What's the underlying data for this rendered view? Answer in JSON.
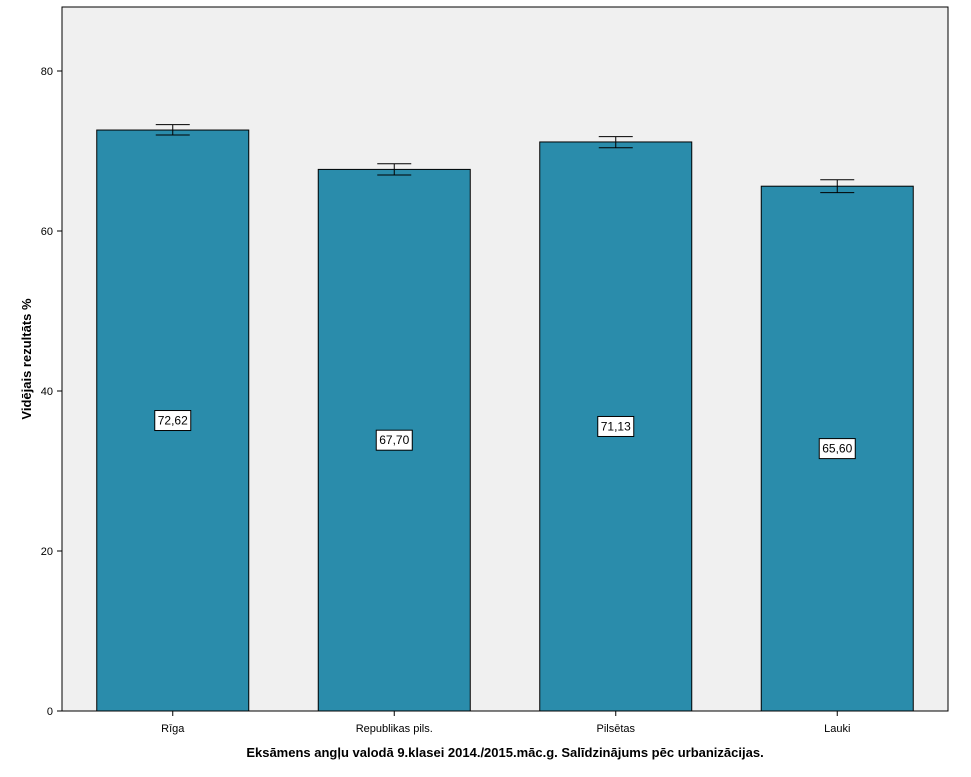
{
  "chart_data": {
    "type": "bar",
    "categories": [
      "Rīga",
      "Republikas pils.",
      "Pilsētas",
      "Lauki"
    ],
    "values": [
      72.62,
      67.7,
      71.13,
      65.6
    ],
    "value_labels": [
      "72,62",
      "67,70",
      "71,13",
      "65,60"
    ],
    "error_bars": [
      {
        "low": 72.0,
        "high": 73.3
      },
      {
        "low": 67.0,
        "high": 68.4
      },
      {
        "low": 70.4,
        "high": 71.8
      },
      {
        "low": 64.8,
        "high": 66.4
      }
    ],
    "xlabel": "Eksāmens angļu valodā 9.klasei 2014./2015.māc.g. Salīdzinājums pēc urbanizācijas.",
    "ylabel": "Vidējais rezultāts %",
    "ylim": [
      0,
      88
    ],
    "yticks": [
      0,
      20,
      40,
      60,
      80
    ],
    "grid": false,
    "legend": "none",
    "colors": {
      "bar": "#2a8cab",
      "plot_background": "#f0f0f0",
      "axis": "#000000",
      "label_box": "#ffffff"
    }
  }
}
